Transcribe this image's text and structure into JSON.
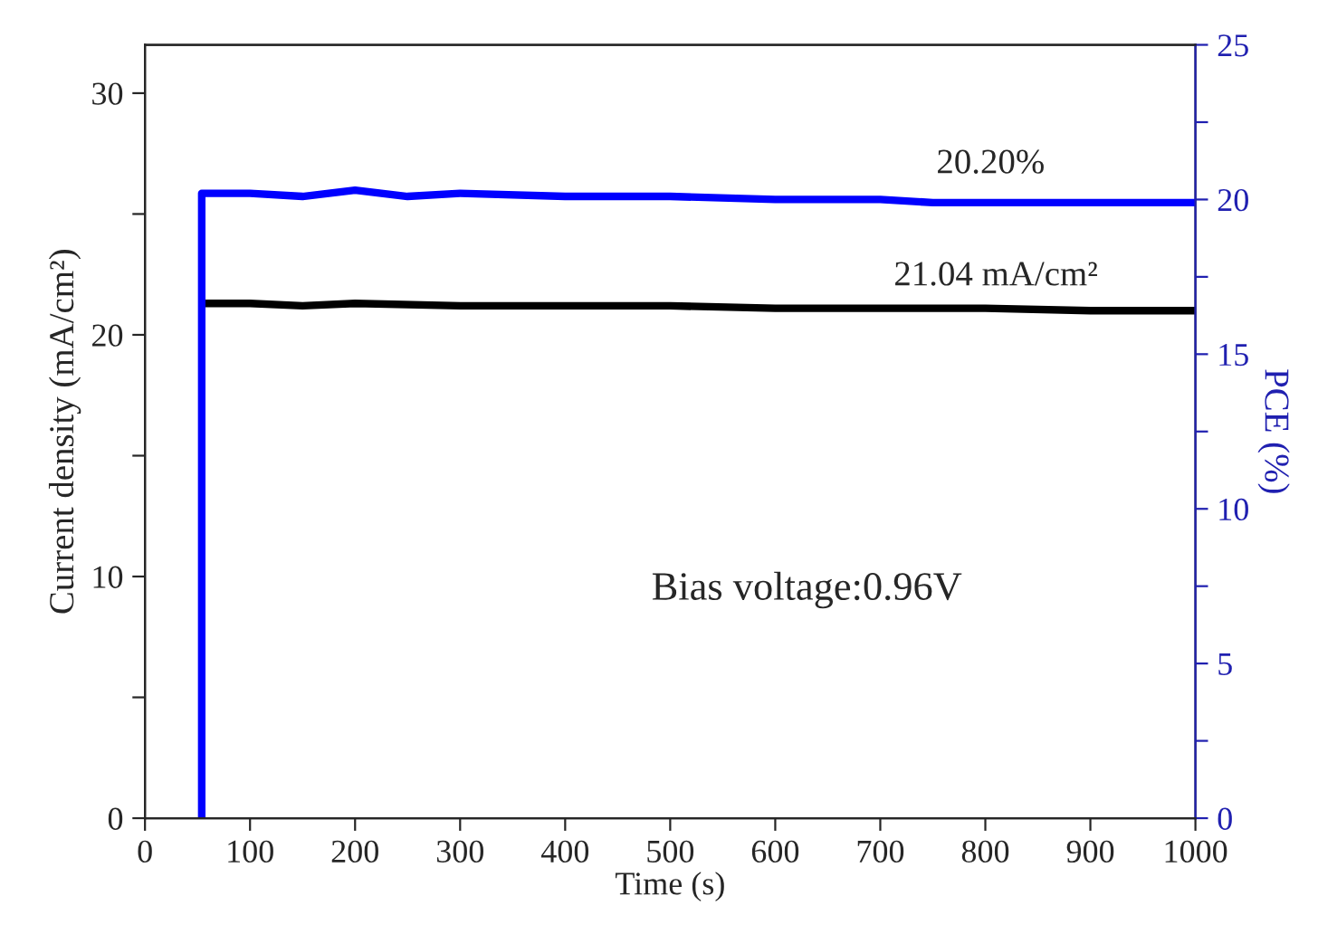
{
  "chart_data": {
    "type": "line",
    "xlabel": "Time (s)",
    "ylabel": "Current density (mA/cm²)",
    "y2label": "PCE (%)",
    "xlim": [
      0,
      1000
    ],
    "xticks": [
      0,
      100,
      200,
      300,
      400,
      500,
      600,
      700,
      800,
      900,
      1000
    ],
    "ylim": [
      0,
      32
    ],
    "yticks": [
      0,
      {
        "value": 5,
        "label": null
      },
      10,
      {
        "value": 15,
        "label": null
      },
      20,
      {
        "value": 25,
        "label": null
      },
      30
    ],
    "y2lim": [
      0,
      25
    ],
    "y2ticks": [
      0,
      {
        "value": 2.5,
        "label": null
      },
      5,
      {
        "value": 7.5,
        "label": null
      },
      10,
      {
        "value": 12.5,
        "label": null
      },
      15,
      {
        "value": 17.5,
        "label": null
      },
      20,
      {
        "value": 22.5,
        "label": null
      },
      25
    ],
    "series": [
      {
        "color": "#0000ff",
        "axis": "y2",
        "x": [
          54,
          54,
          60,
          100,
          150,
          200,
          250,
          300,
          400,
          500,
          600,
          700,
          750,
          800,
          900,
          1000
        ],
        "values": [
          0,
          20.2,
          20.2,
          20.2,
          20.1,
          20.3,
          20.1,
          20.2,
          20.1,
          20.1,
          20.0,
          20.0,
          19.9,
          19.9,
          19.9,
          19.9
        ]
      },
      {
        "color": "#000000",
        "x": [
          57,
          100,
          150,
          200,
          300,
          400,
          500,
          600,
          700,
          800,
          900,
          1000
        ],
        "values": [
          21.3,
          21.3,
          21.2,
          21.3,
          21.2,
          21.2,
          21.2,
          21.1,
          21.1,
          21.1,
          21.0,
          21.0
        ]
      }
    ],
    "annotations": [
      "20.20%",
      "21.04 mA/cm²",
      "Bias voltage:0.96V"
    ],
    "grid": false,
    "legend": false
  }
}
